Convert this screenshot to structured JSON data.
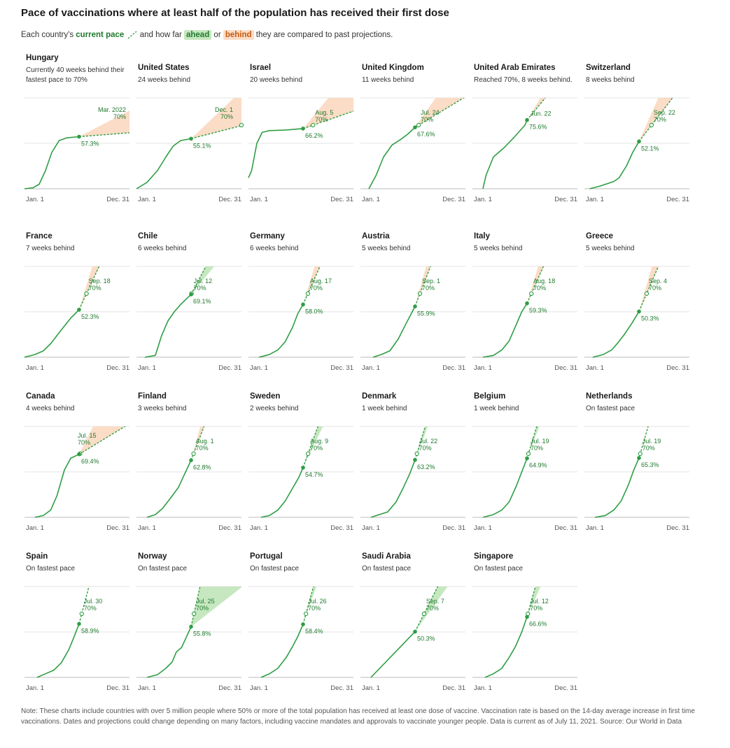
{
  "title": "Pace of vaccinations where at least half of the population has received their first dose",
  "subtitle": {
    "before": "Each country's ",
    "current_pace": "current pace",
    "middle": " and how far ",
    "ahead": "ahead",
    "or": " or ",
    "behind": "behind",
    "after": " they are compared to past projections."
  },
  "note": "Note: These charts include countries with over 5 million people where 50% or more of the total population has received at least one dose of vaccine. Vaccination rate is based on the 14-day average increase in first time vaccinations. Dates and projections could change depending on many factors, including vaccine mandates and approvals to vaccinate younger people. Data is current as of July 11, 2021. Source: Our World in Data",
  "colors": {
    "line": "#2e9e44",
    "label": "#1f7a2e",
    "ahead": "#c6e7bf",
    "behind": "#fbdcc6",
    "grid": "#e3e3e3",
    "axis": "#bbbbbb"
  },
  "chart_data": {
    "type": "line",
    "x_axis": {
      "start_label": "Jan. 1",
      "end_label": "Dec. 31"
    },
    "gridlines_percent": [
      0,
      50,
      100
    ],
    "current_date": "Jul. 11",
    "panels": [
      {
        "country": "Hungary",
        "status": "Currently 40 weeks behind their fastest pace to 70%",
        "current_pct": "57.3%",
        "target_date": "Mar. 2022",
        "target_pct": "70%",
        "kind": "behind",
        "current_value": 57.3
      },
      {
        "country": "United States",
        "status": "24 weeks behind",
        "current_pct": "55.1%",
        "target_date": "Dec. 1",
        "target_pct": "70%",
        "kind": "behind",
        "current_value": 55.1
      },
      {
        "country": "Israel",
        "status": "20 weeks behind",
        "current_pct": "66.2%",
        "target_date": "Aug. 5",
        "target_pct": "70%",
        "kind": "behind",
        "current_value": 66.2
      },
      {
        "country": "United Kingdom",
        "status": "11 weeks behind",
        "current_pct": "67.6%",
        "target_date": "Jul. 24",
        "target_pct": "70%",
        "kind": "behind",
        "current_value": 67.6
      },
      {
        "country": "United Arab Emirates",
        "status": "Reached 70%, 8 weeks behind.",
        "current_pct": "75.6%",
        "target_date": "Jun. 22",
        "target_pct": "",
        "kind": "behind",
        "current_value": 75.6
      },
      {
        "country": "Switzerland",
        "status": "8 weeks behind",
        "current_pct": "52.1%",
        "target_date": "Sep. 22",
        "target_pct": "70%",
        "kind": "behind",
        "current_value": 52.1
      },
      {
        "country": "France",
        "status": "7 weeks behind",
        "current_pct": "52.3%",
        "target_date": "Sep. 18",
        "target_pct": "70%",
        "kind": "behind",
        "current_value": 52.3
      },
      {
        "country": "Chile",
        "status": "6 weeks behind",
        "current_pct": "69.1%",
        "target_date": "Jul. 12",
        "target_pct": "70%",
        "kind": "ahead",
        "current_value": 69.1
      },
      {
        "country": "Germany",
        "status": "6 weeks behind",
        "current_pct": "58.0%",
        "target_date": "Aug. 17",
        "target_pct": "70%",
        "kind": "behind",
        "current_value": 58.0
      },
      {
        "country": "Austria",
        "status": "5 weeks behind",
        "current_pct": "55.9%",
        "target_date": "Sep. 1",
        "target_pct": "70%",
        "kind": "behind",
        "current_value": 55.9
      },
      {
        "country": "Italy",
        "status": "5 weeks behind",
        "current_pct": "59.3%",
        "target_date": "Aug. 18",
        "target_pct": "70%",
        "kind": "behind",
        "current_value": 59.3
      },
      {
        "country": "Greece",
        "status": "5 weeks behind",
        "current_pct": "50.3%",
        "target_date": "Sep. 4",
        "target_pct": "70%",
        "kind": "behind",
        "current_value": 50.3
      },
      {
        "country": "Canada",
        "status": "4 weeks behind",
        "current_pct": "69.4%",
        "target_date": "Jul. 15",
        "target_pct": "70%",
        "kind": "behind",
        "current_value": 69.4
      },
      {
        "country": "Finland",
        "status": "3 weeks behind",
        "current_pct": "62.8%",
        "target_date": "Aug. 1",
        "target_pct": "70%",
        "kind": "behind",
        "current_value": 62.8
      },
      {
        "country": "Sweden",
        "status": "2 weeks behind",
        "current_pct": "54.7%",
        "target_date": "Aug. 9",
        "target_pct": "70%",
        "kind": "ahead",
        "current_value": 54.7
      },
      {
        "country": "Denmark",
        "status": "1 week behind",
        "current_pct": "63.2%",
        "target_date": "Jul. 22",
        "target_pct": "70%",
        "kind": "ahead",
        "current_value": 63.2
      },
      {
        "country": "Belgium",
        "status": "1 week behind",
        "current_pct": "64.9%",
        "target_date": "Jul. 19",
        "target_pct": "70%",
        "kind": "ahead",
        "current_value": 64.9
      },
      {
        "country": "Netherlands",
        "status": "On fastest pace",
        "current_pct": "65.3%",
        "target_date": "Jul. 19",
        "target_pct": "70%",
        "kind": "none",
        "current_value": 65.3
      },
      {
        "country": "Spain",
        "status": "On fastest pace",
        "current_pct": "58.9%",
        "target_date": "Jul. 30",
        "target_pct": "70%",
        "kind": "none",
        "current_value": 58.9
      },
      {
        "country": "Norway",
        "status": "On fastest pace",
        "current_pct": "55.8%",
        "target_date": "Jul. 25",
        "target_pct": "70%",
        "kind": "ahead",
        "current_value": 55.8
      },
      {
        "country": "Portugal",
        "status": "On fastest pace",
        "current_pct": "58.4%",
        "target_date": "Jul. 26",
        "target_pct": "70%",
        "kind": "ahead",
        "current_value": 58.4
      },
      {
        "country": "Saudi Arabia",
        "status": "On fastest pace",
        "current_pct": "50.3%",
        "target_date": "Sep. 7",
        "target_pct": "70%",
        "kind": "ahead",
        "current_value": 50.3
      },
      {
        "country": "Singapore",
        "status": "On fastest pace",
        "current_pct": "66.6%",
        "target_date": "Jul. 12",
        "target_pct": "70%",
        "kind": "ahead",
        "current_value": 66.6
      }
    ]
  }
}
